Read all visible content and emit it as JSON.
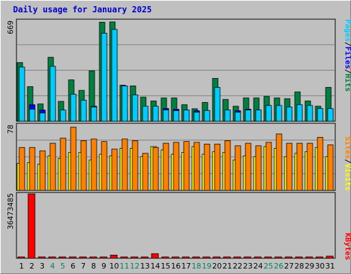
{
  "title": "Daily usage for January 2025",
  "colors": {
    "background": "#c0c0c0",
    "title": "#0000cc",
    "pages": "#00ccff",
    "files": "#0000ff",
    "hits": "#008040",
    "sites": "#ff8000",
    "visits": "#ffff00",
    "kbytes": "#ff0000",
    "weekend_label": "#00805c",
    "weekday_label": "#000000"
  },
  "labels": {
    "pages": "Pages",
    "files": "Files",
    "hits": "Hits",
    "sites": "Sites",
    "visits": "Visits",
    "kbytes": "KBytes",
    "sep": "/"
  },
  "chart_data": [
    {
      "type": "bar",
      "panel": "hits",
      "y_max_label": "669",
      "ylim": [
        0,
        669
      ],
      "categories": [
        "1",
        "2",
        "3",
        "4",
        "5",
        "6",
        "7",
        "8",
        "9",
        "10",
        "11",
        "12",
        "13",
        "14",
        "15",
        "16",
        "17",
        "18",
        "19",
        "20",
        "21",
        "22",
        "23",
        "24",
        "25",
        "26",
        "27",
        "28",
        "29",
        "30",
        "31"
      ],
      "weekend_days": [
        "4",
        "5",
        "11",
        "12",
        "18",
        "19",
        "25",
        "26"
      ],
      "grid": true,
      "series": [
        {
          "name": "Hits",
          "values": [
            390,
            230,
            115,
            425,
            132,
            275,
            205,
            335,
            658,
            660,
            240,
            235,
            160,
            135,
            155,
            155,
            110,
            83,
            125,
            285,
            145,
            100,
            155,
            155,
            165,
            155,
            150,
            195,
            135,
            100,
            225
          ]
        },
        {
          "name": "Files",
          "values": [
            130,
            110,
            75,
            80,
            65,
            80,
            80,
            100,
            70,
            90,
            80,
            75,
            60,
            75,
            85,
            80,
            75,
            70,
            70,
            75,
            70,
            70,
            80,
            70,
            70,
            70,
            70,
            70,
            65,
            60,
            80
          ]
        },
        {
          "name": "Pages",
          "values": [
            360,
            80,
            55,
            365,
            75,
            180,
            140,
            95,
            585,
            610,
            235,
            175,
            100,
            100,
            75,
            70,
            75,
            60,
            72,
            225,
            75,
            60,
            75,
            75,
            105,
            105,
            95,
            110,
            105,
            85,
            85
          ]
        }
      ]
    },
    {
      "type": "bar",
      "panel": "visits",
      "y_max_label": "78",
      "ylim": [
        0,
        78
      ],
      "categories": [
        "1",
        "2",
        "3",
        "4",
        "5",
        "6",
        "7",
        "8",
        "9",
        "10",
        "11",
        "12",
        "13",
        "14",
        "15",
        "16",
        "17",
        "18",
        "19",
        "20",
        "21",
        "22",
        "23",
        "24",
        "25",
        "26",
        "27",
        "28",
        "29",
        "30",
        "31"
      ],
      "grid": true,
      "series": [
        {
          "name": "Sites",
          "values": [
            51,
            51,
            47,
            56,
            62,
            75,
            59,
            61,
            58,
            49,
            61,
            59,
            44,
            51,
            56,
            57,
            58,
            57,
            55,
            55,
            59,
            53,
            56,
            53,
            57,
            67,
            56,
            56,
            56,
            63,
            54
          ]
        },
        {
          "name": "Visits",
          "values": [
            32,
            33,
            31,
            41,
            38,
            45,
            45,
            36,
            43,
            41,
            50,
            50,
            40,
            52,
            48,
            43,
            45,
            52,
            43,
            46,
            45,
            36,
            41,
            40,
            52,
            50,
            40,
            44,
            46,
            51,
            40
          ]
        }
      ]
    },
    {
      "type": "bar",
      "panel": "kbytes",
      "y_max_label": "36473485",
      "ylim": [
        0,
        36473485
      ],
      "categories": [
        "1",
        "2",
        "3",
        "4",
        "5",
        "6",
        "7",
        "8",
        "9",
        "10",
        "11",
        "12",
        "13",
        "14",
        "15",
        "16",
        "17",
        "18",
        "19",
        "20",
        "21",
        "22",
        "23",
        "24",
        "25",
        "26",
        "27",
        "28",
        "29",
        "30",
        "31"
      ],
      "grid": false,
      "series": [
        {
          "name": "KBytes",
          "values": [
            150000,
            36473485,
            100000,
            100000,
            100000,
            100000,
            100000,
            100000,
            100000,
            1800000,
            100000,
            100000,
            100000,
            2600000,
            100000,
            100000,
            100000,
            100000,
            100000,
            100000,
            100000,
            100000,
            100000,
            100000,
            100000,
            100000,
            100000,
            100000,
            100000,
            100000,
            1200000
          ]
        }
      ]
    }
  ]
}
